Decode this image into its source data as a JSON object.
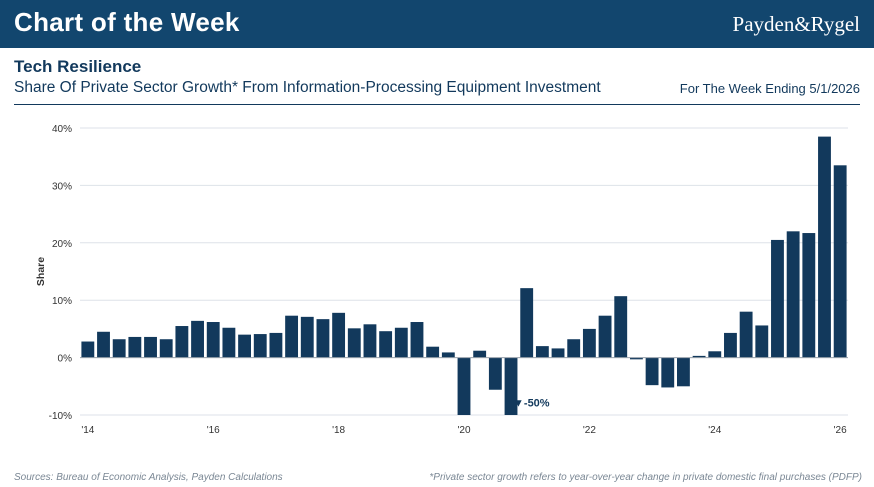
{
  "header": {
    "banner_title": "Chart of the Week",
    "logo_text": "Payden&Rygel",
    "title": "Tech Resilience",
    "subtitle": "Share Of Private Sector Growth* From Information-Processing Equipment Investment",
    "week_label": "For The Week Ending 5/1/2026"
  },
  "footer": {
    "sources": "Sources: Bureau of Economic Analysis, Payden Calculations",
    "note": "*Private sector growth refers to year-over-year change in private domestic final purchases (PDFP)"
  },
  "colors": {
    "banner": "#12466e",
    "bar": "#12395c",
    "text": "#12395c"
  },
  "chart_data": {
    "type": "bar",
    "ylabel": "Share",
    "ylim": [
      -10,
      40
    ],
    "yticks": [
      -10,
      0,
      10,
      20,
      30,
      40
    ],
    "ytick_labels": [
      "-10%",
      "0%",
      "10%",
      "20%",
      "30%",
      "40%"
    ],
    "xticks": [
      {
        "label": "'14",
        "quarter_index": 0
      },
      {
        "label": "'16",
        "quarter_index": 8
      },
      {
        "label": "'18",
        "quarter_index": 16
      },
      {
        "label": "'20",
        "quarter_index": 24
      },
      {
        "label": "'22",
        "quarter_index": 32
      },
      {
        "label": "'24",
        "quarter_index": 40
      },
      {
        "label": "'26",
        "quarter_index": 48
      }
    ],
    "grid": true,
    "annotation": {
      "text": "▼-50%",
      "quarter_index": 27
    },
    "values": [
      2.8,
      4.5,
      3.2,
      3.6,
      3.6,
      3.2,
      5.5,
      6.4,
      6.2,
      5.2,
      4.0,
      4.1,
      4.3,
      7.3,
      7.1,
      6.7,
      7.8,
      5.1,
      5.8,
      4.6,
      5.2,
      6.2,
      1.9,
      0.9,
      -10.0,
      1.2,
      -5.6,
      -10.0,
      12.1,
      2.0,
      1.6,
      3.2,
      5.0,
      7.3,
      10.7,
      -0.3,
      -4.8,
      -5.2,
      -5.0,
      0.3,
      1.1,
      4.3,
      8.0,
      5.6,
      20.5,
      22.0,
      21.7,
      38.5,
      33.5
    ]
  }
}
